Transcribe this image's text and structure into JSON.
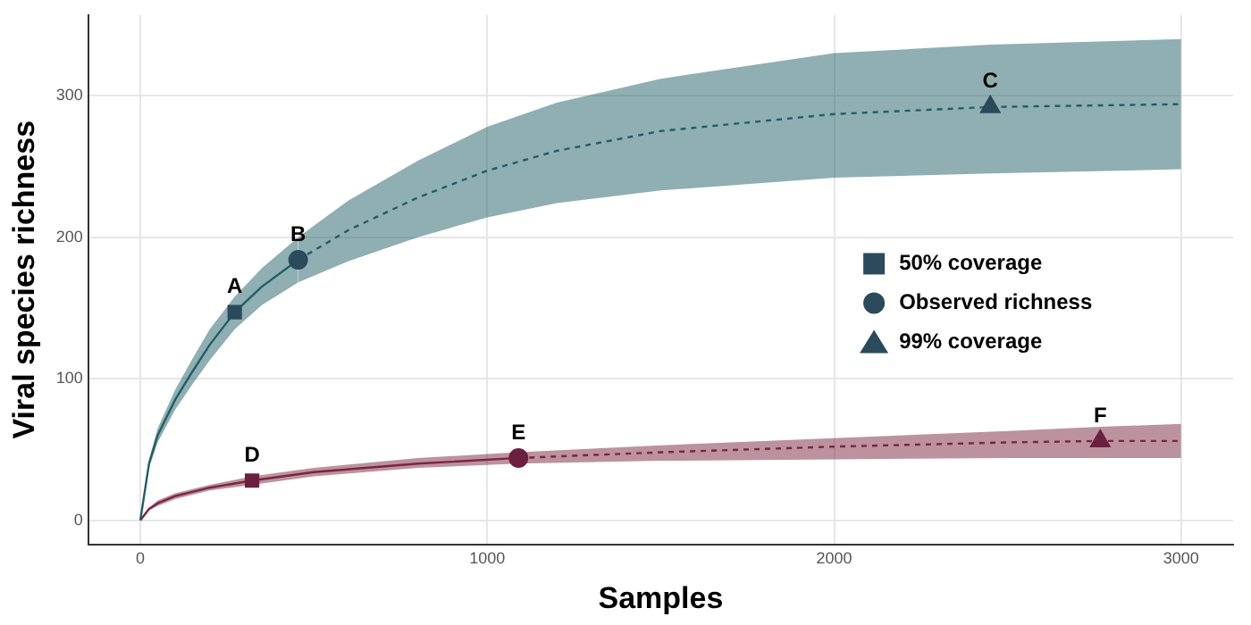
{
  "chart_data": {
    "type": "line",
    "xlabel": "Samples",
    "ylabel": "Viral species richness",
    "xlim": [
      -150,
      3150
    ],
    "ylim": [
      -17,
      357
    ],
    "xticks": [
      0,
      1000,
      2000,
      3000
    ],
    "yticks": [
      0,
      100,
      200,
      300
    ],
    "grid": true,
    "legend": "right",
    "series": [
      {
        "color": "#1f5f66",
        "line_style": "solid",
        "x": [
          0,
          25,
          50,
          100,
          150,
          200,
          272,
          350,
          455
        ],
        "values": [
          0,
          40,
          60,
          85,
          105,
          124,
          147,
          165,
          184
        ],
        "lower": [
          0,
          37,
          55,
          78,
          96,
          113,
          135,
          152,
          168
        ],
        "upper": [
          0,
          43,
          65,
          92,
          114,
          135,
          158,
          178,
          200
        ]
      },
      {
        "color": "#1f5f66",
        "line_style": "dashed",
        "x": [
          455,
          600,
          800,
          1000,
          1200,
          1500,
          2000,
          2450,
          3000
        ],
        "values": [
          184,
          205,
          228,
          247,
          261,
          275,
          287,
          292,
          294
        ],
        "lower": [
          168,
          183,
          200,
          214,
          224,
          233,
          242,
          245,
          248
        ],
        "upper": [
          200,
          226,
          254,
          278,
          295,
          312,
          330,
          336,
          340
        ]
      },
      {
        "color": "#7a2540",
        "line_style": "solid",
        "x": [
          0,
          25,
          50,
          100,
          200,
          322,
          500,
          800,
          1090
        ],
        "values": [
          0,
          8,
          12,
          17,
          23,
          28,
          34,
          40,
          44
        ],
        "lower": [
          0,
          7,
          10,
          15,
          21,
          25,
          31,
          37,
          40
        ],
        "upper": [
          0,
          9,
          14,
          19,
          25,
          31,
          37,
          44,
          48
        ]
      },
      {
        "color": "#7a2540",
        "line_style": "dashed",
        "x": [
          1090,
          1500,
          2000,
          2500,
          2767,
          3000
        ],
        "values": [
          44,
          48,
          52,
          55,
          56,
          56
        ],
        "lower": [
          40,
          42,
          43,
          44,
          44,
          44
        ],
        "upper": [
          48,
          53,
          58,
          63,
          66,
          68
        ]
      },
      {
        "type": "scatter",
        "name": "50% coverage",
        "marker": "square",
        "x": [
          272,
          322
        ],
        "values": [
          147,
          28
        ],
        "colors": [
          "#2b4a5c",
          "#6b2040"
        ]
      },
      {
        "type": "scatter",
        "name": "Observed richness",
        "marker": "circle",
        "x": [
          455,
          1090
        ],
        "values": [
          184,
          44
        ],
        "colors": [
          "#2b4a5c",
          "#6b2040"
        ]
      },
      {
        "type": "scatter",
        "name": "99% coverage",
        "marker": "triangle",
        "x": [
          2450,
          2767
        ],
        "values": [
          292,
          56
        ],
        "colors": [
          "#2b4a5c",
          "#6b2040"
        ]
      }
    ],
    "annotations": [
      {
        "text": "A",
        "x": 272,
        "y": 147
      },
      {
        "text": "B",
        "x": 455,
        "y": 184
      },
      {
        "text": "C",
        "x": 2450,
        "y": 292
      },
      {
        "text": "D",
        "x": 322,
        "y": 28
      },
      {
        "text": "E",
        "x": 1090,
        "y": 44
      },
      {
        "text": "F",
        "x": 2767,
        "y": 56
      }
    ]
  }
}
